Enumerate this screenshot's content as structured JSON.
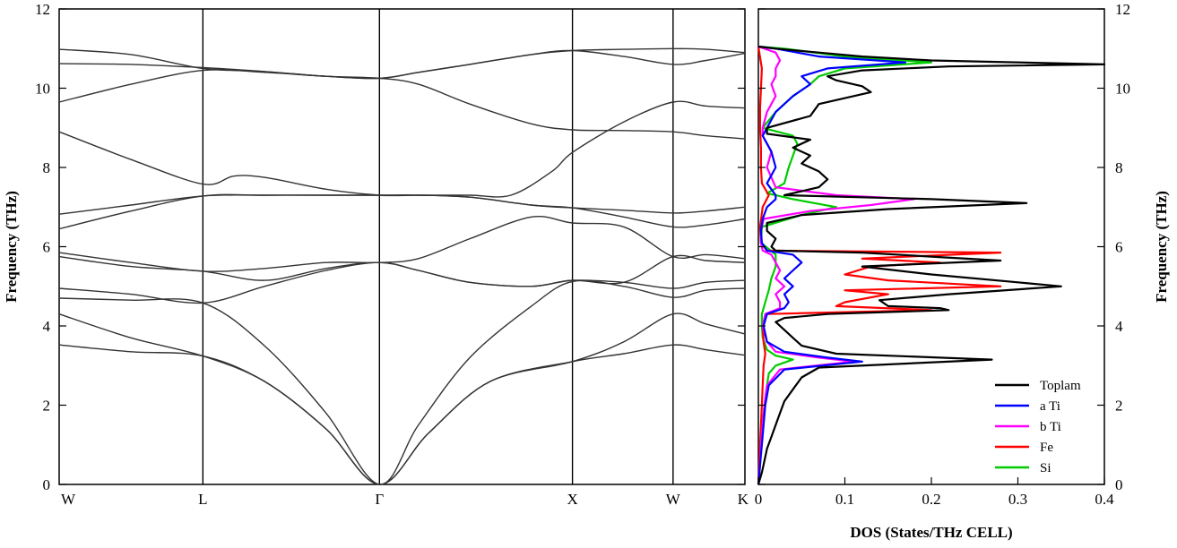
{
  "chart_data": [
    {
      "type": "line",
      "panel": "band-structure",
      "ylabel": "Frequency (THz)",
      "ylim": [
        0,
        12
      ],
      "yticks": [
        0,
        2,
        4,
        6,
        8,
        10,
        12
      ],
      "kpath": {
        "labels": [
          "W",
          "L",
          "Γ",
          "X",
          "W",
          "K"
        ],
        "positions": [
          0,
          0.7,
          1.56,
          2.5,
          2.99,
          3.34
        ]
      },
      "series": [
        {
          "x": [
            0,
            0.35,
            0.7,
            1.0,
            1.3,
            1.56,
            1.8,
            2.1,
            2.5,
            2.75,
            2.99,
            3.15,
            3.34
          ],
          "y": [
            3.52,
            3.35,
            3.24,
            2.6,
            1.4,
            0.0,
            1.3,
            2.6,
            3.1,
            3.3,
            3.52,
            3.4,
            3.26
          ]
        },
        {
          "x": [
            0,
            0.35,
            0.7,
            1.0,
            1.3,
            1.56,
            1.8,
            2.1,
            2.5,
            2.75,
            2.99,
            3.15,
            3.34
          ],
          "y": [
            4.3,
            3.7,
            3.24,
            2.6,
            1.4,
            0.0,
            1.3,
            2.6,
            3.1,
            3.6,
            4.3,
            4.05,
            3.8
          ]
        },
        {
          "x": [
            0,
            0.35,
            0.7,
            1.0,
            1.3,
            1.56,
            1.75,
            2.0,
            2.3,
            2.5,
            2.75,
            2.99,
            3.15,
            3.34
          ],
          "y": [
            4.7,
            4.65,
            4.58,
            3.5,
            1.8,
            0.0,
            1.5,
            3.2,
            4.5,
            5.12,
            5.0,
            4.72,
            4.9,
            4.95
          ]
        },
        {
          "x": [
            0,
            0.35,
            0.7,
            1.0,
            1.3,
            1.56,
            1.75,
            2.0,
            2.3,
            2.5,
            2.75,
            2.99,
            3.15,
            3.34
          ],
          "y": [
            4.95,
            4.8,
            4.58,
            5.0,
            5.4,
            5.6,
            5.4,
            5.1,
            5.0,
            5.15,
            5.1,
            4.95,
            5.1,
            5.15
          ]
        },
        {
          "x": [
            0,
            0.35,
            0.7,
            1.0,
            1.3,
            1.56,
            1.75,
            2.0,
            2.3,
            2.5,
            2.75,
            2.99,
            3.15,
            3.34
          ],
          "y": [
            5.75,
            5.5,
            5.38,
            5.15,
            5.45,
            5.6,
            5.4,
            5.1,
            5.0,
            5.15,
            5.1,
            5.75,
            5.65,
            5.6
          ]
        },
        {
          "x": [
            0,
            0.35,
            0.7,
            1.0,
            1.3,
            1.56,
            1.75,
            2.0,
            2.3,
            2.5,
            2.75,
            2.99,
            3.15,
            3.34
          ],
          "y": [
            5.85,
            5.6,
            5.38,
            5.45,
            5.6,
            5.6,
            5.7,
            6.2,
            6.75,
            6.6,
            6.5,
            5.75,
            5.8,
            5.7
          ]
        },
        {
          "x": [
            0,
            0.35,
            0.7,
            1.0,
            1.3,
            1.56,
            1.75,
            2.0,
            2.3,
            2.5,
            2.75,
            2.99,
            3.15,
            3.34
          ],
          "y": [
            6.45,
            6.9,
            7.28,
            7.3,
            7.3,
            7.3,
            7.3,
            7.25,
            7.05,
            6.98,
            6.75,
            6.5,
            6.55,
            6.7
          ]
        },
        {
          "x": [
            0,
            0.35,
            0.7,
            1.0,
            1.3,
            1.56,
            1.75,
            2.0,
            2.3,
            2.5,
            2.75,
            2.99,
            3.15,
            3.34
          ],
          "y": [
            6.82,
            7.05,
            7.28,
            7.3,
            7.3,
            7.3,
            7.3,
            7.25,
            7.05,
            6.98,
            6.92,
            6.85,
            6.9,
            7.0
          ]
        },
        {
          "x": [
            0,
            0.35,
            0.7,
            0.85,
            1.0,
            1.3,
            1.56,
            1.75,
            2.0,
            2.2,
            2.4,
            2.5,
            2.75,
            2.99,
            3.15,
            3.34
          ],
          "y": [
            8.9,
            8.2,
            7.58,
            7.78,
            7.75,
            7.45,
            7.3,
            7.3,
            7.3,
            7.3,
            7.9,
            8.38,
            9.15,
            9.65,
            9.55,
            9.5
          ]
        },
        {
          "x": [
            0,
            0.35,
            0.7,
            1.0,
            1.3,
            1.56,
            1.75,
            2.0,
            2.3,
            2.5,
            2.75,
            2.99,
            3.15,
            3.34
          ],
          "y": [
            9.65,
            10.1,
            10.45,
            10.4,
            10.3,
            10.25,
            10.1,
            9.6,
            9.1,
            8.95,
            8.93,
            8.9,
            8.8,
            8.72
          ]
        },
        {
          "x": [
            0,
            0.35,
            0.7,
            1.0,
            1.3,
            1.56,
            1.75,
            2.0,
            2.3,
            2.5,
            2.75,
            2.99,
            3.15,
            3.34
          ],
          "y": [
            10.62,
            10.6,
            10.52,
            10.42,
            10.3,
            10.25,
            10.4,
            10.6,
            10.85,
            10.95,
            10.98,
            11.0,
            10.98,
            10.9
          ]
        },
        {
          "x": [
            0,
            0.35,
            0.7,
            1.0,
            1.3,
            1.56,
            1.75,
            2.0,
            2.3,
            2.5,
            2.75,
            2.99,
            3.15,
            3.34
          ],
          "y": [
            10.98,
            10.85,
            10.5,
            10.42,
            10.3,
            10.25,
            10.4,
            10.6,
            10.85,
            10.95,
            10.8,
            10.6,
            10.7,
            10.88
          ]
        }
      ]
    },
    {
      "type": "line",
      "panel": "dos",
      "xlabel": "DOS (States/THz CELL)",
      "ylabel": "Frequency (THz)",
      "xlim": [
        0,
        0.4
      ],
      "ylim": [
        0,
        12
      ],
      "xticks": [
        "0",
        "0.1",
        "0.2",
        "0.3",
        "0.4"
      ],
      "yticks": [
        0,
        2,
        4,
        6,
        8,
        10,
        12
      ],
      "legend_position": "bottom-right",
      "series": [
        {
          "name": "Toplam",
          "color": "#000000",
          "freq": [
            0.0,
            0.3,
            0.6,
            0.9,
            1.2,
            1.5,
            1.8,
            2.1,
            2.4,
            2.7,
            2.95,
            3.15,
            3.3,
            3.5,
            3.7,
            3.9,
            4.1,
            4.2,
            4.3,
            4.4,
            4.45,
            4.5,
            4.65,
            4.8,
            5.0,
            5.1,
            5.3,
            5.5,
            5.65,
            5.75,
            5.85,
            5.9,
            6.0,
            6.2,
            6.4,
            6.6,
            6.8,
            6.95,
            7.1,
            7.2,
            7.3,
            7.5,
            7.7,
            7.9,
            8.1,
            8.3,
            8.5,
            8.7,
            8.85,
            9.0,
            9.3,
            9.6,
            9.9,
            10.05,
            10.2,
            10.3,
            10.45,
            10.55,
            10.6,
            10.7,
            10.8,
            10.9,
            11.0,
            11.05
          ],
          "dos": [
            0.0,
            0.004,
            0.007,
            0.01,
            0.015,
            0.02,
            0.025,
            0.03,
            0.04,
            0.05,
            0.07,
            0.27,
            0.09,
            0.05,
            0.04,
            0.03,
            0.02,
            0.03,
            0.08,
            0.22,
            0.21,
            0.15,
            0.14,
            0.22,
            0.35,
            0.3,
            0.2,
            0.12,
            0.28,
            0.2,
            0.12,
            0.02,
            0.015,
            0.02,
            0.01,
            0.01,
            0.05,
            0.15,
            0.31,
            0.2,
            0.03,
            0.07,
            0.08,
            0.07,
            0.05,
            0.06,
            0.04,
            0.06,
            0.01,
            0.01,
            0.06,
            0.07,
            0.13,
            0.12,
            0.09,
            0.08,
            0.12,
            0.22,
            0.4,
            0.2,
            0.12,
            0.07,
            0.02,
            0.0
          ]
        },
        {
          "name": "a Ti",
          "color": "#0000ff",
          "freq": [
            0.0,
            0.5,
            1.0,
            1.5,
            2.0,
            2.5,
            2.9,
            3.1,
            3.2,
            3.35,
            3.6,
            4.0,
            4.3,
            4.45,
            4.6,
            4.8,
            5.0,
            5.2,
            5.4,
            5.6,
            5.8,
            5.9,
            6.1,
            6.4,
            6.7,
            7.0,
            7.2,
            7.3,
            7.6,
            8.0,
            8.4,
            8.8,
            9.0,
            9.4,
            9.8,
            10.1,
            10.3,
            10.5,
            10.65,
            10.8,
            11.0,
            11.05
          ],
          "dos": [
            0.0,
            0.002,
            0.004,
            0.006,
            0.008,
            0.012,
            0.03,
            0.12,
            0.08,
            0.03,
            0.01,
            0.006,
            0.01,
            0.03,
            0.035,
            0.03,
            0.04,
            0.03,
            0.04,
            0.05,
            0.04,
            0.01,
            0.004,
            0.003,
            0.005,
            0.01,
            0.02,
            0.02,
            0.01,
            0.02,
            0.015,
            0.005,
            0.01,
            0.02,
            0.04,
            0.06,
            0.05,
            0.08,
            0.17,
            0.07,
            0.02,
            0.0
          ]
        },
        {
          "name": "b Ti",
          "color": "#ff00ff",
          "freq": [
            0.0,
            0.5,
            1.0,
            1.5,
            2.0,
            2.5,
            2.9,
            3.1,
            3.2,
            3.35,
            3.6,
            4.0,
            4.3,
            4.45,
            4.6,
            4.8,
            5.0,
            5.2,
            5.4,
            5.6,
            5.8,
            5.9,
            6.1,
            6.4,
            6.7,
            6.9,
            7.05,
            7.2,
            7.3,
            7.5,
            8.0,
            8.4,
            8.8,
            9.0,
            9.4,
            9.8,
            10.1,
            10.3,
            10.5,
            10.7,
            10.9,
            11.05
          ],
          "dos": [
            0.0,
            0.002,
            0.003,
            0.005,
            0.007,
            0.01,
            0.025,
            0.11,
            0.07,
            0.02,
            0.01,
            0.005,
            0.008,
            0.025,
            0.025,
            0.02,
            0.03,
            0.02,
            0.025,
            0.02,
            0.015,
            0.005,
            0.003,
            0.003,
            0.006,
            0.06,
            0.13,
            0.18,
            0.09,
            0.02,
            0.01,
            0.015,
            0.005,
            0.005,
            0.01,
            0.02,
            0.015,
            0.02,
            0.02,
            0.025,
            0.02,
            0.0
          ]
        },
        {
          "name": "Fe",
          "color": "#ff0000",
          "freq": [
            0.0,
            0.5,
            1.0,
            1.5,
            2.0,
            2.5,
            3.0,
            3.3,
            3.6,
            4.0,
            4.3,
            4.4,
            4.5,
            4.6,
            4.8,
            4.9,
            5.0,
            5.15,
            5.3,
            5.5,
            5.6,
            5.7,
            5.85,
            5.9,
            6.1,
            6.5,
            7.0,
            7.3,
            7.6,
            8.0,
            8.5,
            9.0,
            9.5,
            10.0,
            10.5,
            11.05
          ],
          "dos": [
            0.0,
            0.001,
            0.002,
            0.003,
            0.004,
            0.005,
            0.006,
            0.008,
            0.006,
            0.005,
            0.01,
            0.2,
            0.09,
            0.1,
            0.15,
            0.1,
            0.28,
            0.15,
            0.1,
            0.13,
            0.21,
            0.12,
            0.28,
            0.01,
            0.003,
            0.002,
            0.005,
            0.012,
            0.004,
            0.003,
            0.003,
            0.002,
            0.002,
            0.003,
            0.004,
            0.0
          ]
        },
        {
          "name": "Si",
          "color": "#00cc00",
          "freq": [
            0.0,
            0.5,
            1.0,
            1.5,
            2.0,
            2.5,
            2.8,
            3.0,
            3.15,
            3.25,
            3.4,
            3.7,
            4.0,
            4.3,
            4.6,
            4.9,
            5.2,
            5.5,
            5.8,
            6.1,
            6.5,
            6.8,
            7.0,
            7.2,
            7.35,
            7.6,
            8.0,
            8.3,
            8.6,
            8.8,
            9.0,
            9.4,
            9.8,
            10.1,
            10.3,
            10.5,
            10.65,
            10.8,
            11.0,
            11.05
          ],
          "dos": [
            0.0,
            0.002,
            0.003,
            0.005,
            0.007,
            0.01,
            0.012,
            0.02,
            0.04,
            0.02,
            0.01,
            0.005,
            0.004,
            0.004,
            0.008,
            0.012,
            0.015,
            0.02,
            0.02,
            0.003,
            0.004,
            0.05,
            0.09,
            0.04,
            0.01,
            0.03,
            0.035,
            0.04,
            0.045,
            0.04,
            0.005,
            0.02,
            0.04,
            0.06,
            0.07,
            0.1,
            0.2,
            0.1,
            0.03,
            0.0
          ]
        }
      ]
    }
  ]
}
